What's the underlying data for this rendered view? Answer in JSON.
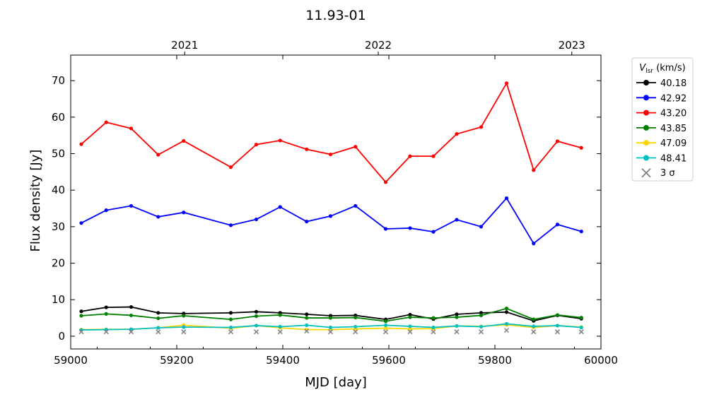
{
  "chart_data": {
    "type": "line",
    "title": "11.93-01",
    "xlabel": "MJD [day]",
    "ylabel": "Flux density [Jy]",
    "xlim": [
      59000,
      60000
    ],
    "ylim": [
      -3.5,
      77
    ],
    "xticks": [
      59000,
      59200,
      59400,
      59600,
      59800,
      60000
    ],
    "yticks": [
      0,
      10,
      20,
      30,
      40,
      50,
      60,
      70
    ],
    "top_axis": {
      "ticks": [
        {
          "label": "2021",
          "mjd": 59215
        },
        {
          "label": "2022",
          "mjd": 59580
        },
        {
          "label": "2023",
          "mjd": 59945
        }
      ]
    },
    "legend": {
      "title_main": "V",
      "title_sub": "lsr",
      "title_unit": " (km/s)",
      "placement": "outside right",
      "sigma_label": "3 σ"
    },
    "x": [
      59020,
      59067,
      59114,
      59165,
      59213,
      59302,
      59350,
      59395,
      59445,
      59490,
      59537,
      59594,
      59640,
      59684,
      59728,
      59774,
      59822,
      59873,
      59918,
      59963
    ],
    "series": [
      {
        "name": "40.18",
        "color": "#000000",
        "values": [
          6.8,
          7.9,
          8.0,
          6.4,
          6.2,
          6.4,
          6.7,
          6.4,
          6.0,
          5.6,
          5.7,
          4.6,
          5.9,
          4.7,
          6.0,
          6.4,
          6.6,
          4.2,
          5.7,
          4.8
        ]
      },
      {
        "name": "42.92",
        "color": "#0000ff",
        "values": [
          31.0,
          34.5,
          35.7,
          32.7,
          33.9,
          30.4,
          32.0,
          35.4,
          31.4,
          32.9,
          35.7,
          29.4,
          29.6,
          28.6,
          31.9,
          30.0,
          37.8,
          25.4,
          30.6,
          28.7
        ]
      },
      {
        "name": "43.20",
        "color": "#ff0000",
        "values": [
          52.6,
          58.6,
          56.9,
          49.7,
          53.5,
          46.3,
          52.5,
          53.6,
          51.2,
          49.8,
          51.9,
          42.2,
          49.3,
          49.3,
          55.4,
          57.3,
          69.3,
          45.5,
          53.4,
          51.6
        ]
      },
      {
        "name": "43.85",
        "color": "#008000",
        "values": [
          5.6,
          6.1,
          5.7,
          4.9,
          5.6,
          4.6,
          5.5,
          5.8,
          5.0,
          5.0,
          5.1,
          4.1,
          5.2,
          5.0,
          5.2,
          5.7,
          7.6,
          4.6,
          5.8,
          5.1
        ]
      },
      {
        "name": "47.09",
        "color": "#ffd700",
        "values": [
          1.8,
          1.9,
          1.9,
          2.3,
          3.0,
          2.2,
          2.9,
          2.3,
          1.8,
          1.8,
          2.0,
          2.2,
          2.0,
          2.1,
          2.8,
          2.7,
          3.1,
          2.4,
          2.9,
          2.5
        ]
      },
      {
        "name": "48.41",
        "color": "#00bfbf",
        "values": [
          1.7,
          1.8,
          1.9,
          2.3,
          2.5,
          2.4,
          2.9,
          2.6,
          3.0,
          2.4,
          2.6,
          3.0,
          2.7,
          2.4,
          2.8,
          2.6,
          3.4,
          2.7,
          2.9,
          2.4
        ]
      }
    ],
    "sigma": {
      "name": "3 σ",
      "color": "#808080",
      "values": [
        1.2,
        1.2,
        1.2,
        1.2,
        1.2,
        1.2,
        1.2,
        1.2,
        1.4,
        1.2,
        1.2,
        1.2,
        1.2,
        1.2,
        1.2,
        1.2,
        1.6,
        1.2,
        1.2,
        1.2
      ]
    }
  }
}
